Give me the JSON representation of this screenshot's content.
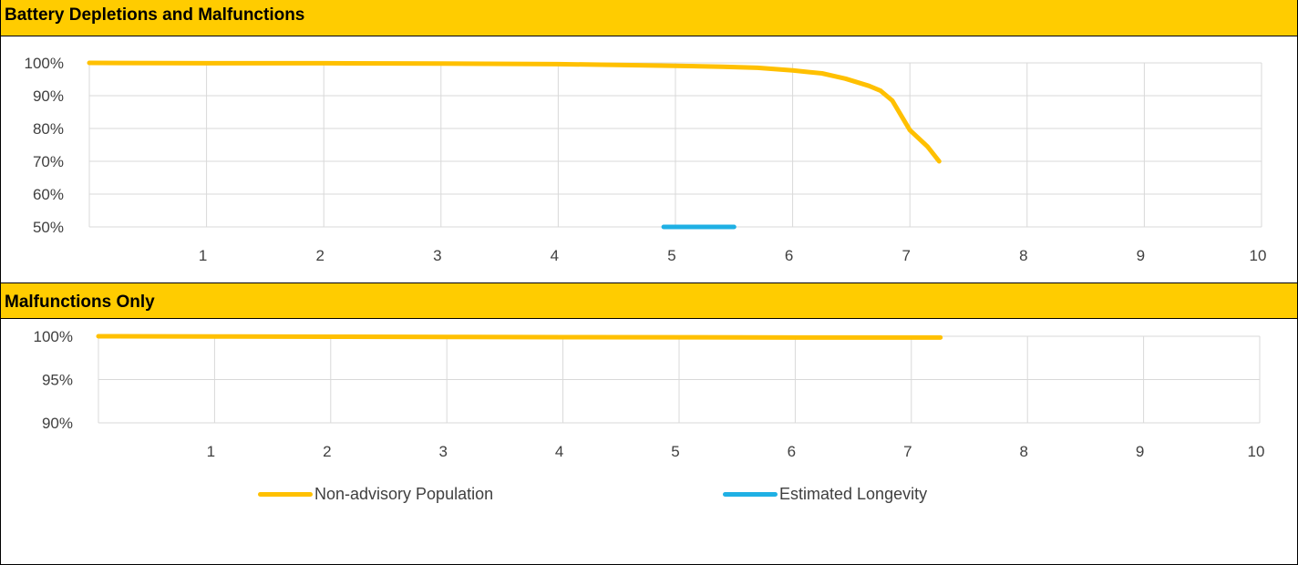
{
  "colors": {
    "header_bg": "#ffcc00",
    "non_advisory": "#ffc000",
    "longevity": "#1fb0e4",
    "grid": "#d9d9d9"
  },
  "headers": {
    "top": "Battery Depletions and Malfunctions",
    "bottom": "Malfunctions Only"
  },
  "legend": {
    "non_advisory": "Non-advisory Population",
    "longevity": "Estimated Longevity"
  },
  "chart_data": [
    {
      "type": "line",
      "title": "Battery Depletions and Malfunctions",
      "xlim": [
        0,
        10
      ],
      "x_ticks": [
        "1",
        "2",
        "3",
        "4",
        "5",
        "6",
        "7",
        "8",
        "9",
        "10"
      ],
      "ylim": [
        0.5,
        1.0
      ],
      "y_ticks": [
        "100%",
        "90%",
        "80%",
        "70%",
        "60%",
        "50%"
      ],
      "grid": true,
      "series": [
        {
          "name": "Non-advisory Population",
          "color": "#ffc000",
          "x": [
            0,
            1,
            2,
            3,
            4,
            4.5,
            5,
            5.4,
            5.7,
            6,
            6.25,
            6.45,
            6.65,
            6.75,
            6.85,
            7.0,
            7.15,
            7.25
          ],
          "y": [
            1.0,
            0.999,
            0.999,
            0.998,
            0.996,
            0.994,
            0.991,
            0.988,
            0.985,
            0.977,
            0.968,
            0.952,
            0.93,
            0.915,
            0.885,
            0.795,
            0.745,
            0.7
          ]
        },
        {
          "name": "Estimated Longevity",
          "color": "#1fb0e4",
          "x": [
            4.9,
            5.5
          ],
          "y": [
            0.5,
            0.5
          ]
        }
      ]
    },
    {
      "type": "line",
      "title": "Malfunctions Only",
      "xlim": [
        0,
        10
      ],
      "x_ticks": [
        "1",
        "2",
        "3",
        "4",
        "5",
        "6",
        "7",
        "8",
        "9",
        "10"
      ],
      "ylim": [
        0.9,
        1.0
      ],
      "y_ticks": [
        "100%",
        "95%",
        "90%"
      ],
      "grid": true,
      "series": [
        {
          "name": "Non-advisory Population",
          "color": "#ffc000",
          "x": [
            0,
            1,
            2,
            3,
            4,
            5,
            6,
            7,
            7.25
          ],
          "y": [
            1.0,
            0.9998,
            0.9995,
            0.9993,
            0.999,
            0.9988,
            0.9985,
            0.9985,
            0.9985
          ]
        }
      ]
    }
  ]
}
